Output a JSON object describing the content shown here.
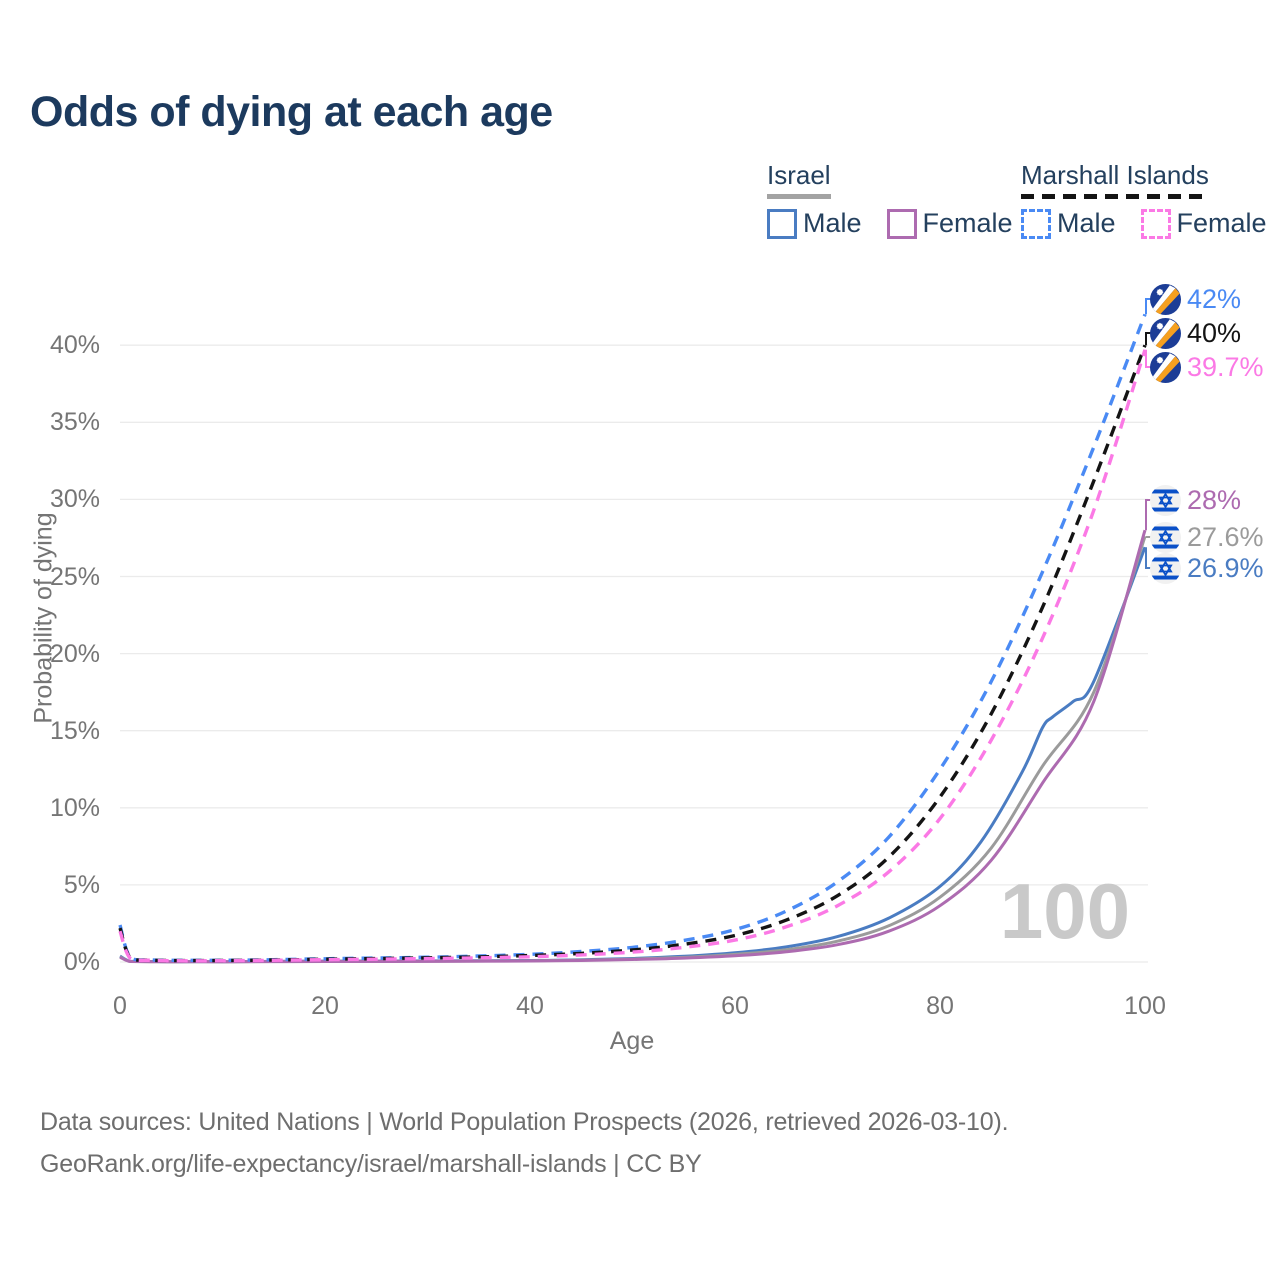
{
  "page": {
    "title": "Odds of dying at each age"
  },
  "legend": {
    "groups": [
      {
        "label": "Israel",
        "line_style": "solid",
        "underline_color": "#a3a3a3",
        "entries": [
          {
            "label": "Male",
            "color": "#4a7cc2"
          },
          {
            "label": "Female",
            "color": "#ad6bb0"
          }
        ]
      },
      {
        "label": "Marshall Islands",
        "line_style": "dashed",
        "underline_color": "#141414",
        "entries": [
          {
            "label": "Male",
            "color": "#4a8af4"
          },
          {
            "label": "Female",
            "color": "#fb79e5"
          }
        ]
      }
    ]
  },
  "chart_data": {
    "type": "line",
    "title": "Odds of dying at each age",
    "xlabel": "Age",
    "ylabel": "Probability of dying",
    "xlim": [
      0,
      100
    ],
    "ylim": [
      0,
      43
    ],
    "grid": "horizontal",
    "legend_position": "top-right",
    "x_ticks": [
      {
        "value": 0,
        "label": "0"
      },
      {
        "value": 20,
        "label": "20"
      },
      {
        "value": 40,
        "label": "40"
      },
      {
        "value": 60,
        "label": "60"
      },
      {
        "value": 80,
        "label": "80"
      },
      {
        "value": 100,
        "label": "100"
      }
    ],
    "y_ticks": [
      {
        "value": 0,
        "label": "0%"
      },
      {
        "value": 5,
        "label": "5%"
      },
      {
        "value": 10,
        "label": "10%"
      },
      {
        "value": 15,
        "label": "15%"
      },
      {
        "value": 20,
        "label": "20%"
      },
      {
        "value": 25,
        "label": "25%"
      },
      {
        "value": 30,
        "label": "30%"
      },
      {
        "value": 35,
        "label": "35%"
      },
      {
        "value": 40,
        "label": "40%"
      }
    ],
    "series": [
      {
        "id": "marshall-male",
        "name": "Marshall Islands — Male",
        "country": "Marshall Islands",
        "sex": "Male",
        "color": "#4a8af4",
        "dashed": true,
        "end_label": "42%",
        "end_value": 42.0,
        "flag": "marshall-islands",
        "points": [
          [
            0,
            2.4
          ],
          [
            1,
            0.3
          ],
          [
            3,
            0.14
          ],
          [
            5,
            0.11
          ],
          [
            10,
            0.11
          ],
          [
            15,
            0.15
          ],
          [
            20,
            0.21
          ],
          [
            25,
            0.26
          ],
          [
            30,
            0.31
          ],
          [
            35,
            0.39
          ],
          [
            40,
            0.5
          ],
          [
            45,
            0.68
          ],
          [
            50,
            0.95
          ],
          [
            55,
            1.4
          ],
          [
            60,
            2.1
          ],
          [
            65,
            3.3
          ],
          [
            70,
            5.2
          ],
          [
            75,
            8.1
          ],
          [
            80,
            12.5
          ],
          [
            85,
            18.2
          ],
          [
            90,
            25.3
          ],
          [
            95,
            33.4
          ],
          [
            100,
            42.0
          ]
        ]
      },
      {
        "id": "marshall-both",
        "name": "Marshall Islands — Both sexes",
        "country": "Marshall Islands",
        "sex": "Both",
        "color": "#141414",
        "dashed": true,
        "end_label": "40%",
        "end_value": 40.0,
        "flag": "marshall-islands",
        "points": [
          [
            0,
            2.2
          ],
          [
            1,
            0.27
          ],
          [
            3,
            0.12
          ],
          [
            5,
            0.095
          ],
          [
            10,
            0.095
          ],
          [
            15,
            0.13
          ],
          [
            20,
            0.18
          ],
          [
            25,
            0.22
          ],
          [
            30,
            0.27
          ],
          [
            35,
            0.33
          ],
          [
            40,
            0.42
          ],
          [
            45,
            0.56
          ],
          [
            50,
            0.78
          ],
          [
            55,
            1.15
          ],
          [
            60,
            1.72
          ],
          [
            65,
            2.72
          ],
          [
            70,
            4.3
          ],
          [
            75,
            6.8
          ],
          [
            80,
            10.7
          ],
          [
            85,
            16.1
          ],
          [
            90,
            23.0
          ],
          [
            95,
            31.2
          ],
          [
            100,
            40.0
          ]
        ]
      },
      {
        "id": "marshall-female",
        "name": "Marshall Islands — Female",
        "country": "Marshall Islands",
        "sex": "Female",
        "color": "#fb79e5",
        "dashed": true,
        "end_label": "39.7%",
        "end_value": 39.7,
        "flag": "marshall-islands",
        "points": [
          [
            0,
            2.0
          ],
          [
            1,
            0.24
          ],
          [
            3,
            0.11
          ],
          [
            5,
            0.085
          ],
          [
            10,
            0.085
          ],
          [
            15,
            0.11
          ],
          [
            20,
            0.15
          ],
          [
            25,
            0.18
          ],
          [
            30,
            0.22
          ],
          [
            35,
            0.27
          ],
          [
            40,
            0.34
          ],
          [
            45,
            0.46
          ],
          [
            50,
            0.64
          ],
          [
            55,
            0.95
          ],
          [
            60,
            1.42
          ],
          [
            65,
            2.28
          ],
          [
            70,
            3.65
          ],
          [
            75,
            5.85
          ],
          [
            80,
            9.3
          ],
          [
            85,
            14.4
          ],
          [
            90,
            21.0
          ],
          [
            95,
            29.3
          ],
          [
            100,
            39.7
          ]
        ]
      },
      {
        "id": "israel-female",
        "name": "Israel — Female",
        "country": "Israel",
        "sex": "Female",
        "color": "#ad6bb0",
        "dashed": false,
        "end_label": "28%",
        "end_value": 28.0,
        "flag": "israel",
        "points": [
          [
            0,
            0.31
          ],
          [
            1,
            0.035
          ],
          [
            3,
            0.02
          ],
          [
            5,
            0.015
          ],
          [
            10,
            0.015
          ],
          [
            15,
            0.025
          ],
          [
            20,
            0.035
          ],
          [
            30,
            0.04
          ],
          [
            40,
            0.065
          ],
          [
            45,
            0.1
          ],
          [
            50,
            0.16
          ],
          [
            55,
            0.25
          ],
          [
            60,
            0.4
          ],
          [
            65,
            0.66
          ],
          [
            70,
            1.12
          ],
          [
            75,
            2.0
          ],
          [
            80,
            3.65
          ],
          [
            85,
            6.6
          ],
          [
            90,
            11.6
          ],
          [
            95,
            16.9
          ],
          [
            100,
            28.0
          ]
        ]
      },
      {
        "id": "israel-both",
        "name": "Israel — Both sexes",
        "country": "Israel",
        "sex": "Both",
        "color": "#9b9b9b",
        "dashed": false,
        "end_label": "27.6%",
        "end_value": 27.6,
        "flag": "israel",
        "points": [
          [
            0,
            0.34
          ],
          [
            1,
            0.04
          ],
          [
            3,
            0.025
          ],
          [
            5,
            0.018
          ],
          [
            10,
            0.018
          ],
          [
            15,
            0.03
          ],
          [
            20,
            0.045
          ],
          [
            30,
            0.055
          ],
          [
            40,
            0.08
          ],
          [
            45,
            0.12
          ],
          [
            50,
            0.19
          ],
          [
            55,
            0.3
          ],
          [
            60,
            0.49
          ],
          [
            65,
            0.8
          ],
          [
            70,
            1.35
          ],
          [
            75,
            2.35
          ],
          [
            80,
            4.2
          ],
          [
            85,
            7.4
          ],
          [
            90,
            12.7
          ],
          [
            95,
            17.5
          ],
          [
            100,
            27.6
          ]
        ]
      },
      {
        "id": "israel-male",
        "name": "Israel — Male",
        "country": "Israel",
        "sex": "Male",
        "color": "#4a7cc2",
        "dashed": false,
        "end_label": "26.9%",
        "end_value": 26.9,
        "flag": "israel",
        "points": [
          [
            0,
            0.38
          ],
          [
            1,
            0.05
          ],
          [
            3,
            0.03
          ],
          [
            5,
            0.02
          ],
          [
            10,
            0.02
          ],
          [
            15,
            0.04
          ],
          [
            20,
            0.06
          ],
          [
            30,
            0.07
          ],
          [
            40,
            0.1
          ],
          [
            45,
            0.15
          ],
          [
            50,
            0.23
          ],
          [
            55,
            0.37
          ],
          [
            60,
            0.6
          ],
          [
            65,
            0.98
          ],
          [
            70,
            1.65
          ],
          [
            75,
            2.85
          ],
          [
            80,
            4.9
          ],
          [
            84,
            7.8
          ],
          [
            88,
            12.3
          ],
          [
            90,
            15.2
          ],
          [
            91,
            15.9
          ],
          [
            93,
            16.9
          ],
          [
            95,
            18.2
          ],
          [
            100,
            26.9
          ]
        ]
      }
    ]
  },
  "watermark": "100",
  "footer": {
    "line1": "Data sources: United Nations | World Population Prospects (2026, retrieved 2026-03-10).",
    "line2": "GeoRank.org/life-expectancy/israel/marshall-islands | CC BY"
  }
}
